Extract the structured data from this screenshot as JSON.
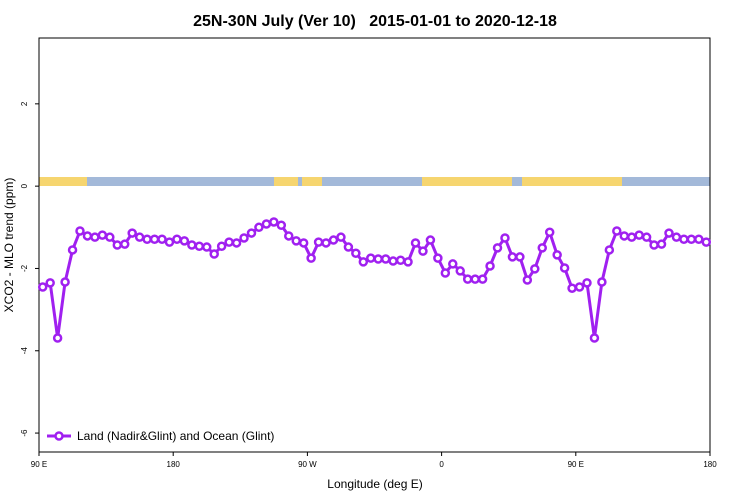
{
  "chart_data": {
    "type": "line",
    "title": "25N-30N July (Ver 10)   2015-01-01 to 2020-12-18",
    "xlabel": "Longitude (deg E)",
    "ylabel": "XCO2 - MLO trend (ppm)",
    "xlim": [
      90,
      540
    ],
    "ylim": [
      -6.46,
      3.6
    ],
    "xticks": [
      {
        "value": 90,
        "label": "90 E"
      },
      {
        "value": 180,
        "label": "180"
      },
      {
        "value": 270,
        "label": "90 W"
      },
      {
        "value": 360,
        "label": "0"
      },
      {
        "value": 450,
        "label": "90 E"
      },
      {
        "value": 540,
        "label": "180"
      }
    ],
    "yticks": [
      2,
      0,
      -2,
      -4,
      -6
    ],
    "legend": "bottom-left",
    "series": [
      {
        "name": "Land (Nadir&Glint) and Ocean (Glint)",
        "color": "#a020f0",
        "x": [
          92.5,
          97.5,
          102.5,
          107.5,
          112.5,
          117.5,
          122.5,
          127.5,
          132.5,
          137.5,
          142.5,
          147.5,
          152.5,
          157.5,
          162.5,
          167.5,
          172.5,
          177.5,
          182.5,
          187.5,
          192.5,
          197.5,
          202.5,
          207.5,
          212.5,
          217.5,
          222.5,
          227.5,
          232.5,
          237.5,
          242.5,
          247.5,
          252.5,
          257.5,
          262.5,
          267.5,
          272.5,
          277.5,
          282.5,
          287.5,
          292.5,
          297.5,
          302.5,
          307.5,
          312.5,
          317.5,
          322.5,
          327.5,
          332.5,
          337.5,
          342.5,
          347.5,
          352.5,
          357.5,
          362.5,
          367.5,
          372.5,
          377.5,
          382.5,
          387.5,
          392.5,
          397.5,
          402.5,
          407.5,
          412.5,
          417.5,
          422.5,
          427.5,
          432.5,
          437.5,
          442.5,
          447.5,
          452.5,
          457.5,
          462.5,
          467.5,
          472.5,
          477.5,
          482.5,
          487.5,
          492.5,
          497.5,
          502.5,
          507.5,
          512.5,
          517.5,
          522.5,
          527.5,
          532.5,
          537.5
        ],
        "values": [
          -2.45,
          -2.35,
          -3.69,
          -2.33,
          -1.55,
          -1.09,
          -1.21,
          -1.24,
          -1.19,
          -1.24,
          -1.43,
          -1.41,
          -1.14,
          -1.24,
          -1.29,
          -1.29,
          -1.29,
          -1.36,
          -1.29,
          -1.33,
          -1.43,
          -1.46,
          -1.48,
          -1.65,
          -1.46,
          -1.36,
          -1.38,
          -1.26,
          -1.14,
          -1.0,
          -0.92,
          -0.87,
          -0.95,
          -1.21,
          -1.33,
          -1.38,
          -1.75,
          -1.36,
          -1.38,
          -1.31,
          -1.24,
          -1.48,
          -1.63,
          -1.84,
          -1.75,
          -1.77,
          -1.77,
          -1.82,
          -1.8,
          -1.84,
          -1.38,
          -1.58,
          -1.31,
          -1.75,
          -2.11,
          -1.89,
          -2.06,
          -2.26,
          -2.26,
          -2.26,
          -1.94,
          -1.5,
          -1.26,
          -1.72,
          -1.72,
          -2.28,
          -2.01,
          -1.5,
          -1.12,
          -1.67,
          -1.99,
          -2.48,
          -2.45,
          -2.35,
          -3.69,
          -2.33,
          -1.55,
          -1.09,
          -1.21,
          -1.24,
          -1.19,
          -1.24,
          -1.43,
          -1.41,
          -1.14,
          -1.24,
          -1.29,
          -1.29,
          -1.29,
          -1.36
        ]
      }
    ]
  }
}
